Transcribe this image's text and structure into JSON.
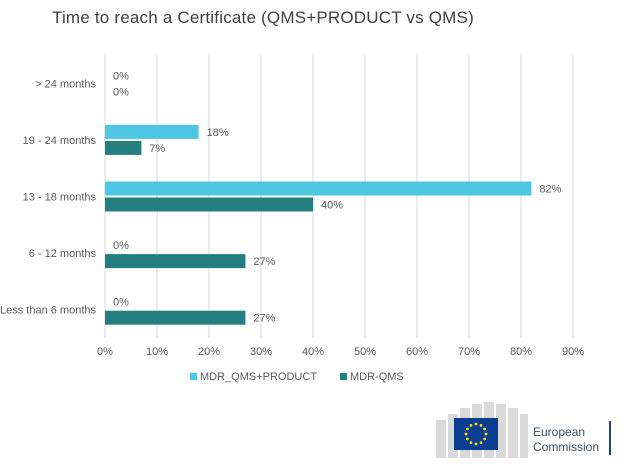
{
  "chart_data": {
    "type": "bar",
    "orientation": "horizontal",
    "title": "Time to reach a Certificate (QMS+PRODUCT vs QMS)",
    "categories": [
      "> 24 months",
      "19 - 24 months",
      "13 - 18 months",
      "6 - 12 months",
      "Less than 6 months"
    ],
    "series": [
      {
        "name": "MDR_QMS+PRODUCT",
        "values": [
          0,
          18,
          82,
          0,
          0
        ],
        "color": "#4cc6e3"
      },
      {
        "name": "MDR-QMS",
        "values": [
          0,
          7,
          40,
          27,
          27
        ],
        "color": "#237f7f"
      }
    ],
    "xlim": [
      0,
      90
    ],
    "xticks": [
      "0%",
      "10%",
      "20%",
      "30%",
      "40%",
      "50%",
      "60%",
      "70%",
      "80%",
      "90%"
    ],
    "value_suffix": "%",
    "grid": true,
    "legend": "bottom"
  },
  "logo": {
    "line1": "European",
    "line2": "Commission",
    "flag_color": "#0b3d91",
    "star_color": "#ffdd00"
  }
}
